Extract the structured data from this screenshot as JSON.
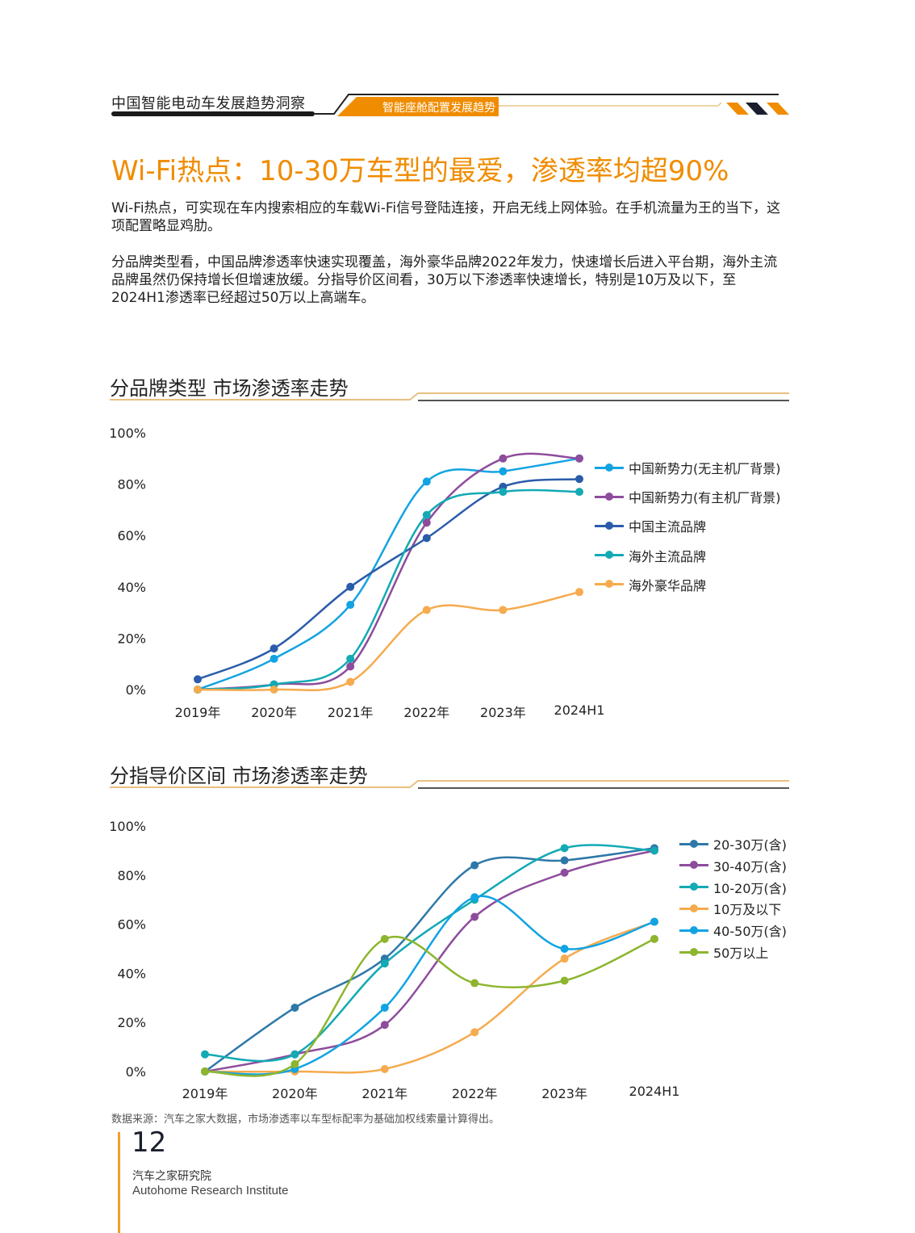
{
  "header": {
    "report_title": "中国智能电动车发展趋势洞察",
    "section_tag": "智能座舱配置发展趋势"
  },
  "main_title": "Wi-Fi热点：10-30万车型的最爱，渗透率均超90%",
  "paragraphs": [
    "Wi-Fi热点，可实现在车内搜索相应的车载Wi-Fi信号登陆连接，开启无线上网体验。在手机流量为王的当下，这项配置略显鸡肋。",
    "分品牌类型看，中国品牌渗透率快速实现覆盖，海外豪华品牌2022年发力，快速增长后进入平台期，海外主流品牌虽然仍保持增长但增速放缓。分指导价区间看，30万以下渗透率快速增长，特别是10万及以下，至2024H1渗透率已经超过50万以上高端车。"
  ],
  "chart_data": [
    {
      "type": "line",
      "title": "分品牌类型  市场渗透率走势",
      "categories": [
        "2019年",
        "2020年",
        "2021年",
        "2022年",
        "2023年",
        "2024H1"
      ],
      "ylim": [
        0,
        100
      ],
      "yticks": [
        "0%",
        "20%",
        "40%",
        "60%",
        "80%",
        "100%"
      ],
      "grid": false,
      "legend": "right",
      "series": [
        {
          "name": "中国新势力(无主机厂背景)",
          "color": "#12a3e3",
          "values": [
            0,
            12,
            33,
            81,
            85,
            90
          ]
        },
        {
          "name": "中国新势力(有主机厂背景)",
          "color": "#8e4c9c",
          "values": [
            0,
            2,
            9,
            65,
            90,
            90
          ]
        },
        {
          "name": "中国主流品牌",
          "color": "#2a5caa",
          "values": [
            4,
            16,
            40,
            59,
            79,
            82
          ]
        },
        {
          "name": "海外主流品牌",
          "color": "#13aab4",
          "values": [
            0,
            2,
            12,
            68,
            77,
            77
          ]
        },
        {
          "name": "海外豪华品牌",
          "color": "#f5ab4e",
          "values": [
            0,
            0,
            3,
            31,
            31,
            38
          ]
        }
      ]
    },
    {
      "type": "line",
      "title": "分指导价区间  市场渗透率走势",
      "categories": [
        "2019年",
        "2020年",
        "2021年",
        "2022年",
        "2023年",
        "2024H1"
      ],
      "ylim": [
        0,
        100
      ],
      "yticks": [
        "0%",
        "20%",
        "40%",
        "60%",
        "80%",
        "100%"
      ],
      "grid": false,
      "legend": "right",
      "series": [
        {
          "name": "20-30万(含)",
          "color": "#2e78a8",
          "values": [
            0,
            26,
            46,
            84,
            86,
            91
          ]
        },
        {
          "name": "30-40万(含)",
          "color": "#8e4c9c",
          "values": [
            0,
            7,
            19,
            63,
            81,
            90
          ]
        },
        {
          "name": "10-20万(含)",
          "color": "#13aab4",
          "values": [
            7,
            7,
            44,
            70,
            91,
            90
          ]
        },
        {
          "name": "10万及以下",
          "color": "#f5ab4e",
          "values": [
            0,
            0,
            1,
            16,
            46,
            61
          ]
        },
        {
          "name": "40-50万(含)",
          "color": "#12a3e3",
          "values": [
            0,
            1,
            26,
            71,
            50,
            61
          ]
        },
        {
          "name": "50万以上",
          "color": "#8db52e",
          "values": [
            0,
            3,
            54,
            36,
            37,
            54
          ]
        }
      ]
    }
  ],
  "source_note": "数据来源：汽车之家大数据，市场渗透率以车型标配率为基础加权线索量计算得出。",
  "footer": {
    "page_number": "12",
    "org_cn": "汽车之家研究院",
    "org_en": "Autohome Research Institute"
  },
  "colors": {
    "accent": "#f08c00",
    "dark": "#1a1a1a"
  }
}
